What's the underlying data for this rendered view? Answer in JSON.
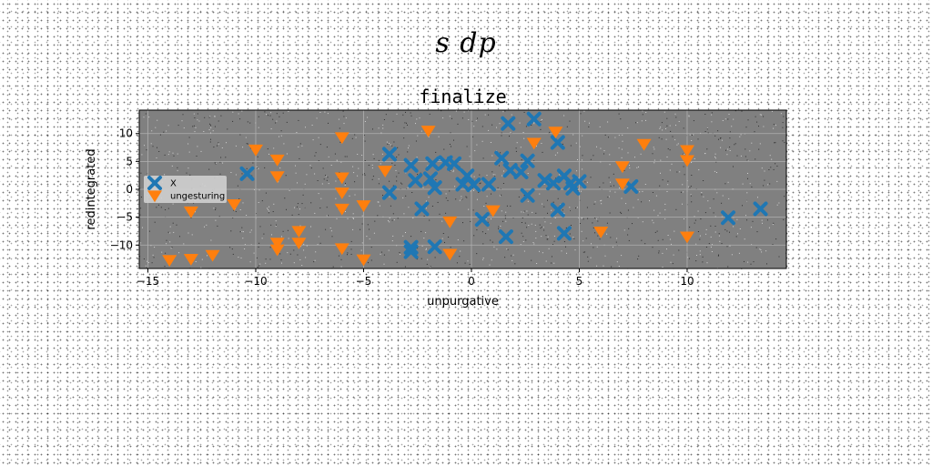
{
  "page": {
    "title": "s dp"
  },
  "chart_data": {
    "type": "scatter",
    "title": "finalize",
    "xlabel": "unpurgative",
    "ylabel": "redintegrated",
    "xlim": [
      -15.4,
      14.6
    ],
    "ylim": [
      -14.2,
      14.2
    ],
    "xticks": [
      -15,
      -10,
      -5,
      0,
      5,
      10
    ],
    "yticks": [
      -10,
      -5,
      0,
      5,
      10
    ],
    "grid": true,
    "legend_position": "center-left",
    "plot_background": "#808080",
    "series": [
      {
        "name": "X",
        "marker": "x",
        "color": "#1f77b4",
        "points": [
          [
            1.7,
            11.8
          ],
          [
            2.9,
            12.6
          ],
          [
            4.0,
            8.4
          ],
          [
            -3.8,
            6.3
          ],
          [
            -2.8,
            4.3
          ],
          [
            -1.8,
            4.6
          ],
          [
            -1.2,
            4.8
          ],
          [
            -0.8,
            4.6
          ],
          [
            -0.2,
            2.4
          ],
          [
            1.4,
            5.6
          ],
          [
            2.6,
            5.1
          ],
          [
            -10.4,
            2.8
          ],
          [
            -2.6,
            1.6
          ],
          [
            -1.9,
            1.9
          ],
          [
            -1.7,
            0.3
          ],
          [
            -0.4,
            0.9
          ],
          [
            0.1,
            0.8
          ],
          [
            0.8,
            0.9
          ],
          [
            1.8,
            3.4
          ],
          [
            2.3,
            3.1
          ],
          [
            3.4,
            1.6
          ],
          [
            3.8,
            1.1
          ],
          [
            4.3,
            2.4
          ],
          [
            4.6,
            1.1
          ],
          [
            4.7,
            0.2
          ],
          [
            5.0,
            1.4
          ],
          [
            -3.8,
            -0.6
          ],
          [
            2.6,
            -1.1
          ],
          [
            7.4,
            0.5
          ],
          [
            -2.3,
            -3.5
          ],
          [
            4.0,
            -3.7
          ],
          [
            0.5,
            -5.4
          ],
          [
            11.9,
            -5.1
          ],
          [
            13.4,
            -3.5
          ],
          [
            1.6,
            -8.5
          ],
          [
            4.3,
            -7.9
          ],
          [
            -2.8,
            -10.4
          ],
          [
            -1.7,
            -10.3
          ],
          [
            -2.8,
            -11.2
          ]
        ]
      },
      {
        "name": "ungesturing",
        "marker": "v",
        "color": "#ff7f0e",
        "points": [
          [
            -2.0,
            10.5
          ],
          [
            3.9,
            10.3
          ],
          [
            -6.0,
            9.3
          ],
          [
            2.9,
            8.3
          ],
          [
            8.0,
            8.1
          ],
          [
            -10.0,
            7.1
          ],
          [
            10.0,
            7.0
          ],
          [
            -9.0,
            5.3
          ],
          [
            10.0,
            5.2
          ],
          [
            7.0,
            4.1
          ],
          [
            -4.0,
            3.3
          ],
          [
            -9.0,
            2.3
          ],
          [
            -6.0,
            2.1
          ],
          [
            7.0,
            1.0
          ],
          [
            -6.0,
            -0.6
          ],
          [
            -6.0,
            -3.5
          ],
          [
            -5.0,
            -2.9
          ],
          [
            -11.0,
            -2.7
          ],
          [
            -13.0,
            -4.0
          ],
          [
            1.0,
            -3.8
          ],
          [
            -1.0,
            -5.8
          ],
          [
            -8.0,
            -7.5
          ],
          [
            6.0,
            -7.6
          ],
          [
            -9.0,
            -9.6
          ],
          [
            -8.0,
            -9.6
          ],
          [
            10.0,
            -8.5
          ],
          [
            -6.0,
            -10.6
          ],
          [
            -9.0,
            -10.8
          ],
          [
            -1.0,
            -11.6
          ],
          [
            -12.0,
            -11.8
          ],
          [
            -13.0,
            -12.5
          ],
          [
            -14.0,
            -12.7
          ],
          [
            -5.0,
            -12.6
          ]
        ]
      }
    ]
  }
}
